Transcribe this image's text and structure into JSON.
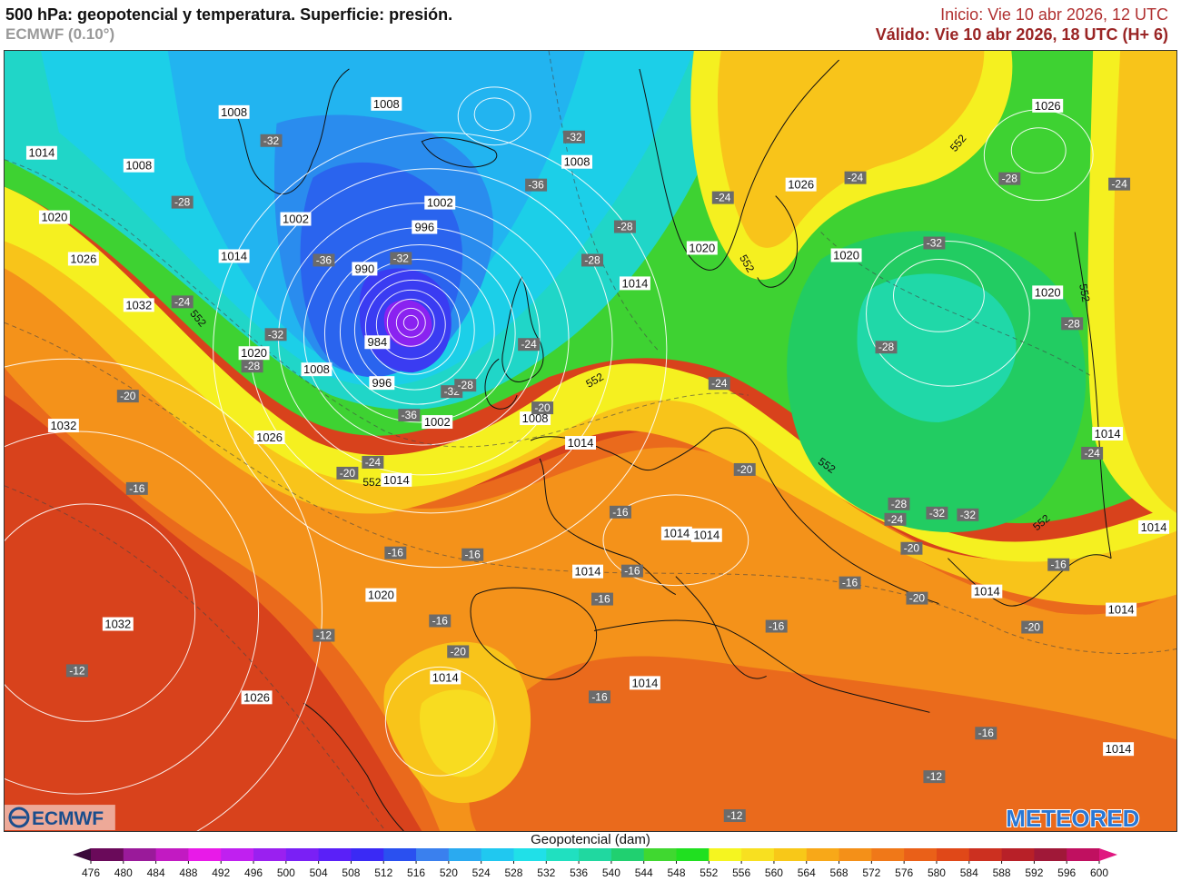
{
  "header": {
    "title": "500 hPa: geopotencial y temperatura. Superficie: presión.",
    "model": "ECMWF (0.10°)",
    "init_label": "Inicio: Vie 10 abr 2026, 12 UTC",
    "valid_label": "Válido: Vie 10 abr 2026, 18 UTC (H+ 6)"
  },
  "colorbar": {
    "title": "Geopotencial (dam)",
    "ticks": [
      "476",
      "480",
      "484",
      "488",
      "492",
      "496",
      "500",
      "504",
      "508",
      "512",
      "516",
      "520",
      "524",
      "528",
      "532",
      "536",
      "540",
      "544",
      "548",
      "552",
      "556",
      "560",
      "564",
      "568",
      "572",
      "576",
      "580",
      "584",
      "588",
      "592",
      "596",
      "600"
    ],
    "colors": [
      "#3a0a3a",
      "#6a0a5a",
      "#9a1a9a",
      "#c21ac2",
      "#e81ae8",
      "#c020f0",
      "#9a20f0",
      "#7a20f5",
      "#5a20f8",
      "#3a2af5",
      "#2a50f0",
      "#3a80ee",
      "#2aaaf0",
      "#20c8f0",
      "#20e0e8",
      "#20e0c0",
      "#20d8a0",
      "#20d070",
      "#40d830",
      "#20e020",
      "#f5f520",
      "#f8e020",
      "#f8c818",
      "#f8a818",
      "#f49018",
      "#f07818",
      "#ea6018",
      "#e04818",
      "#cc3020",
      "#b82028",
      "#a01838",
      "#c01060",
      "#e01880"
    ]
  },
  "logos": {
    "left": "ECMWF",
    "right": "METEORED"
  },
  "pressure_labels": [
    "1008",
    "1008",
    "1014",
    "1008",
    "1020",
    "1026",
    "1014",
    "1002",
    "1002",
    "996",
    "990",
    "984",
    "996",
    "1002",
    "1008",
    "1032",
    "1020",
    "1008",
    "1032",
    "1026",
    "1014",
    "1008",
    "1014",
    "1020",
    "1014",
    "1014",
    "1014",
    "1020",
    "1032",
    "1014",
    "1014",
    "1026",
    "1026",
    "1020",
    "1026",
    "1020",
    "1014",
    "1014",
    "1014",
    "1014",
    "1014",
    "1014"
  ],
  "temperature_labels": [
    "-32",
    "-28",
    "-36",
    "-32",
    "-32",
    "-24",
    "-32",
    "-28",
    "-20",
    "-16",
    "-12",
    "-36",
    "-36",
    "-32",
    "-28",
    "-20",
    "-24",
    "-32",
    "-28",
    "-28",
    "-24",
    "-20",
    "-24",
    "-24",
    "-28",
    "-32",
    "-28",
    "-24",
    "-28",
    "-24",
    "-24",
    "-28",
    "-32",
    "-24",
    "-20",
    "-16",
    "-16",
    "-16",
    "-16",
    "-12",
    "-16",
    "-16",
    "-16",
    "-20",
    "-20",
    "-16",
    "-12",
    "-20",
    "-12",
    "-16",
    "-20",
    "-16",
    "-16"
  ],
  "geopotential_labels": [
    "552",
    "552",
    "552",
    "552",
    "552",
    "552",
    "552",
    "552"
  ]
}
